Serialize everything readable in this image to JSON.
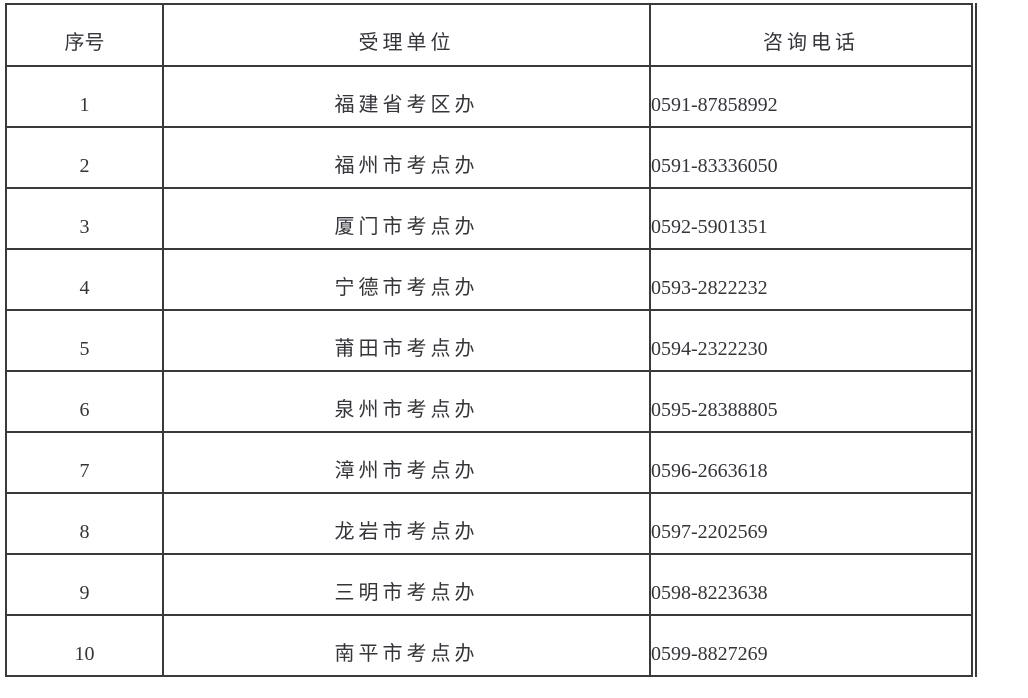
{
  "table": {
    "headers": [
      {
        "key": "index",
        "label": "序号"
      },
      {
        "key": "unit",
        "label": "受理单位"
      },
      {
        "key": "phone",
        "label": "咨询电话"
      }
    ],
    "rows": [
      {
        "index": "1",
        "unit": "福建省考区办",
        "phone": "0591-87858992"
      },
      {
        "index": "2",
        "unit": "福州市考点办",
        "phone": "0591-83336050"
      },
      {
        "index": "3",
        "unit": "厦门市考点办",
        "phone": "0592-5901351"
      },
      {
        "index": "4",
        "unit": "宁德市考点办",
        "phone": "0593-2822232"
      },
      {
        "index": "5",
        "unit": "莆田市考点办",
        "phone": "0594-2322230"
      },
      {
        "index": "6",
        "unit": "泉州市考点办",
        "phone": "0595-28388805"
      },
      {
        "index": "7",
        "unit": "漳州市考点办",
        "phone": "0596-2663618"
      },
      {
        "index": "8",
        "unit": "龙岩市考点办",
        "phone": "0597-2202569"
      },
      {
        "index": "9",
        "unit": "三明市考点办",
        "phone": "0598-8223638"
      },
      {
        "index": "10",
        "unit": "南平市考点办",
        "phone": "0599-8827269"
      }
    ]
  },
  "colors": {
    "border": "#3a3a3a",
    "text": "#34353b",
    "background": "#ffffff"
  }
}
